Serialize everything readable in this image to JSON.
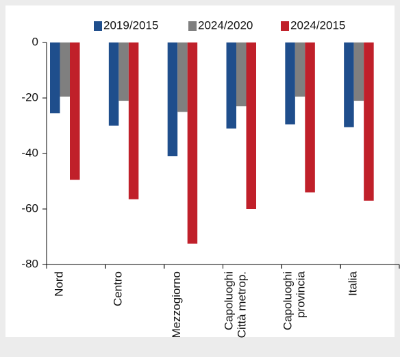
{
  "chart_data": {
    "type": "bar",
    "categories": [
      "Nord",
      "Centro",
      "Mezzogiorno",
      "Capoluoghi\nCittà metrop.",
      "Capoluoghi\nprovincia",
      "Italia"
    ],
    "series": [
      {
        "name": "2019/2015",
        "color": "#1f4e8c",
        "values": [
          -25.5,
          -30,
          -41,
          -31,
          -29.5,
          -30.5
        ]
      },
      {
        "name": "2024/2020",
        "color": "#7f7f7f",
        "values": [
          -19.5,
          -21,
          -25,
          -23,
          -19.5,
          -21
        ]
      },
      {
        "name": "2024/2015",
        "color": "#c0202a",
        "values": [
          -49.5,
          -56.5,
          -72.5,
          -60,
          -54,
          -57
        ]
      }
    ],
    "ylim": [
      -80,
      0
    ],
    "yticks": [
      0,
      -20,
      -40,
      -60,
      -80
    ]
  }
}
